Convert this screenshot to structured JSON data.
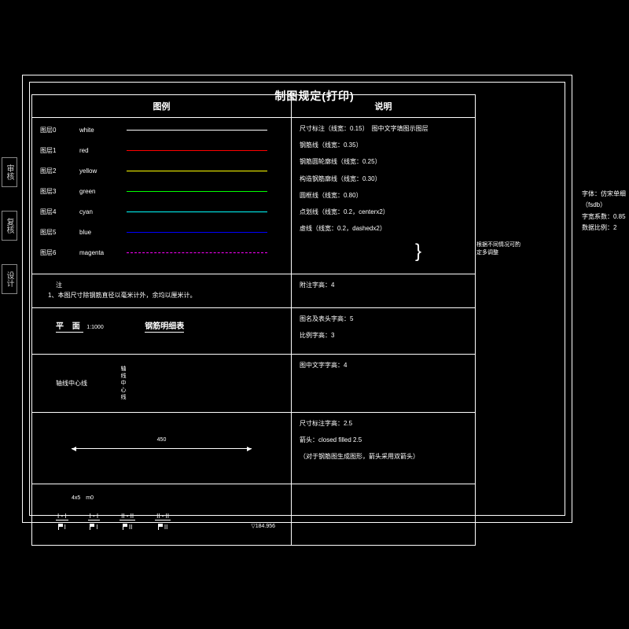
{
  "background_color": "#000000",
  "line_color": "#ffffff",
  "text_color": "#ffffff",
  "title": "制图规定(打印)",
  "side_tabs": [
    "审核",
    "复核",
    "设计"
  ],
  "headers": {
    "left": "图例",
    "right": "说明"
  },
  "layers": [
    {
      "idx": "图层0",
      "name": "white",
      "color": "#ffffff",
      "style": "solid"
    },
    {
      "idx": "图层1",
      "name": "red",
      "color": "#ff0000",
      "style": "solid"
    },
    {
      "idx": "图层2",
      "name": "yellow",
      "color": "#ffff00",
      "style": "solid"
    },
    {
      "idx": "图层3",
      "name": "green",
      "color": "#00ff00",
      "style": "solid"
    },
    {
      "idx": "图层4",
      "name": "cyan",
      "color": "#00ffff",
      "style": "solid"
    },
    {
      "idx": "图层5",
      "name": "blue",
      "color": "#0000ff",
      "style": "solid"
    },
    {
      "idx": "图层6",
      "name": "magenta",
      "color": "#ff00ff",
      "style": "dashed"
    }
  ],
  "desc_lines": {
    "d1": "尺寸标注（线宽：0.15）　图中文字填图示图层",
    "d2": "钢筋线（线宽：0.35）",
    "d3": "钢筋圆轮廓线（线宽：0.25）",
    "d4": "构造钢筋廓线（线宽：0.30）",
    "d5": "圆框线（线宽：0.80）",
    "d6": "点划线（线宽：0.2，centerx2）",
    "d7": "虚线（线宽：0.2，dashedx2）",
    "d_brace_note": "根据不同情况可酌定多调整"
  },
  "note": {
    "h": "注",
    "t1": "1、本图尺寸除钢筋直径以毫米计外，余均以厘米计。"
  },
  "row3": {
    "pm": "平 面",
    "scale": "1:1000",
    "detail": "钢筋明细表",
    "r": {
      "a": "图名及表头字高：5",
      "b": "比例字高：3"
    }
  },
  "row4": {
    "axis": "轴线中心线",
    "vlabel": "轴线中心线",
    "r": "图中文字字高：4"
  },
  "row2r": "附注字高：4",
  "row5": {
    "dim": "450",
    "r1": "尺寸标注字高：2.5",
    "r2": "箭头：closed filled  2.5",
    "r3": "（对于钢筋图生成图形，箭头采用双箭头）"
  },
  "row6": {
    "hint": "4x5　m0",
    "marks": [
      "I - I",
      "I - I",
      "II - II",
      "II - II"
    ],
    "lower": [
      "I",
      "I",
      "II",
      "II"
    ],
    "elev": "▽184.956"
  },
  "annot": {
    "a": "字体：仿宋单细（fsdb）",
    "b": "字宽系数：0.85",
    "c": "数据比例：2"
  }
}
